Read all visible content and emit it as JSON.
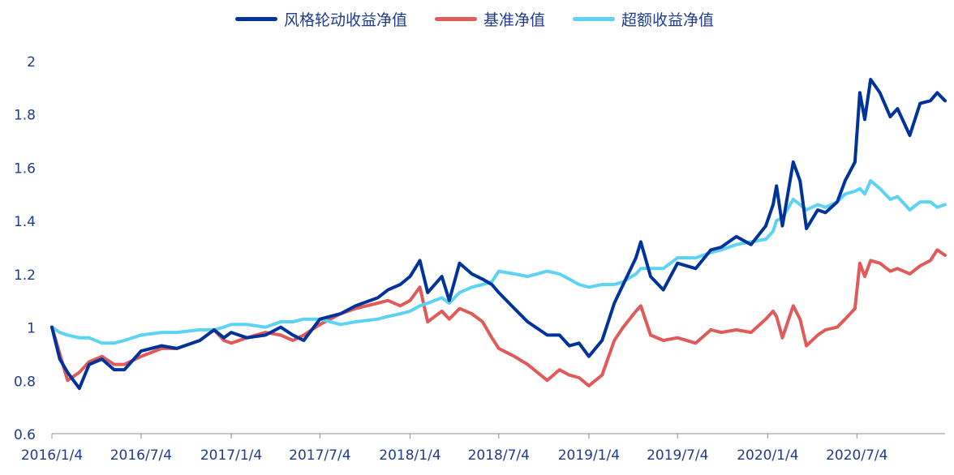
{
  "chart_data": {
    "type": "line",
    "title": "",
    "xlabel": "",
    "ylabel": "",
    "ylim": [
      0.6,
      2.0
    ],
    "yticks": [
      "0.6",
      "0.8",
      "1",
      "1.2",
      "1.4",
      "1.6",
      "1.8",
      "2"
    ],
    "xtick_labels": [
      "2016/1/4",
      "2016/7/4",
      "2017/1/4",
      "2017/7/4",
      "2018/1/4",
      "2018/7/4",
      "2019/1/4",
      "2019/7/4",
      "2020/1/4",
      "2020/7/4"
    ],
    "x_end": "2020/12/31",
    "legend_position": "top-center",
    "series": [
      {
        "name": "风格轮动收益净值",
        "color": "#003399",
        "points": [
          [
            "2016/1/4",
            1.0
          ],
          [
            "2016/1/20",
            0.88
          ],
          [
            "2016/2/5",
            0.83
          ],
          [
            "2016/2/29",
            0.77
          ],
          [
            "2016/3/20",
            0.86
          ],
          [
            "2016/4/15",
            0.88
          ],
          [
            "2016/5/10",
            0.84
          ],
          [
            "2016/5/31",
            0.84
          ],
          [
            "2016/7/4",
            0.91
          ],
          [
            "2016/8/15",
            0.93
          ],
          [
            "2016/9/15",
            0.92
          ],
          [
            "2016/11/1",
            0.95
          ],
          [
            "2016/11/30",
            0.99
          ],
          [
            "2016/12/20",
            0.96
          ],
          [
            "2017/1/4",
            0.98
          ],
          [
            "2017/2/5",
            0.96
          ],
          [
            "2017/3/15",
            0.97
          ],
          [
            "2017/4/15",
            1.0
          ],
          [
            "2017/5/10",
            0.97
          ],
          [
            "2017/6/1",
            0.95
          ],
          [
            "2017/7/4",
            1.03
          ],
          [
            "2017/8/15",
            1.05
          ],
          [
            "2017/9/15",
            1.08
          ],
          [
            "2017/10/30",
            1.11
          ],
          [
            "2017/11/20",
            1.14
          ],
          [
            "2017/12/15",
            1.16
          ],
          [
            "2018/1/4",
            1.19
          ],
          [
            "2018/1/24",
            1.25
          ],
          [
            "2018/2/9",
            1.13
          ],
          [
            "2018/3/10",
            1.19
          ],
          [
            "2018/3/25",
            1.1
          ],
          [
            "2018/4/15",
            1.24
          ],
          [
            "2018/5/10",
            1.2
          ],
          [
            "2018/6/1",
            1.18
          ],
          [
            "2018/6/20",
            1.16
          ],
          [
            "2018/7/4",
            1.13
          ],
          [
            "2018/8/5",
            1.07
          ],
          [
            "2018/9/1",
            1.02
          ],
          [
            "2018/10/11",
            0.97
          ],
          [
            "2018/11/5",
            0.97
          ],
          [
            "2018/11/25",
            0.93
          ],
          [
            "2018/12/15",
            0.94
          ],
          [
            "2019/1/4",
            0.89
          ],
          [
            "2019/1/31",
            0.95
          ],
          [
            "2019/2/25",
            1.09
          ],
          [
            "2019/3/15",
            1.16
          ],
          [
            "2019/4/10",
            1.26
          ],
          [
            "2019/4/20",
            1.32
          ],
          [
            "2019/5/10",
            1.19
          ],
          [
            "2019/6/5",
            1.14
          ],
          [
            "2019/7/4",
            1.24
          ],
          [
            "2019/8/10",
            1.22
          ],
          [
            "2019/9/10",
            1.29
          ],
          [
            "2019/10/1",
            1.3
          ],
          [
            "2019/11/1",
            1.34
          ],
          [
            "2019/12/1",
            1.31
          ],
          [
            "2019/12/31",
            1.38
          ],
          [
            "2020/1/15",
            1.46
          ],
          [
            "2020/1/22",
            1.53
          ],
          [
            "2020/2/3",
            1.38
          ],
          [
            "2020/2/25",
            1.62
          ],
          [
            "2020/3/10",
            1.55
          ],
          [
            "2020/3/23",
            1.37
          ],
          [
            "2020/4/15",
            1.44
          ],
          [
            "2020/5/1",
            1.43
          ],
          [
            "2020/5/25",
            1.47
          ],
          [
            "2020/6/10",
            1.55
          ],
          [
            "2020/6/30",
            1.62
          ],
          [
            "2020/7/10",
            1.88
          ],
          [
            "2020/7/20",
            1.78
          ],
          [
            "2020/8/1",
            1.93
          ],
          [
            "2020/8/20",
            1.88
          ],
          [
            "2020/9/10",
            1.79
          ],
          [
            "2020/9/25",
            1.82
          ],
          [
            "2020/10/20",
            1.72
          ],
          [
            "2020/11/10",
            1.84
          ],
          [
            "2020/12/1",
            1.85
          ],
          [
            "2020/12/15",
            1.88
          ],
          [
            "2020/12/31",
            1.85
          ]
        ]
      },
      {
        "name": "基准净值",
        "color": "#e05a5a",
        "points": [
          [
            "2016/1/4",
            1.0
          ],
          [
            "2016/1/20",
            0.9
          ],
          [
            "2016/2/5",
            0.8
          ],
          [
            "2016/2/29",
            0.83
          ],
          [
            "2016/3/20",
            0.87
          ],
          [
            "2016/4/15",
            0.89
          ],
          [
            "2016/5/10",
            0.86
          ],
          [
            "2016/5/31",
            0.86
          ],
          [
            "2016/7/4",
            0.89
          ],
          [
            "2016/8/15",
            0.92
          ],
          [
            "2016/9/15",
            0.92
          ],
          [
            "2016/11/1",
            0.95
          ],
          [
            "2016/11/30",
            0.99
          ],
          [
            "2016/12/20",
            0.95
          ],
          [
            "2017/1/4",
            0.94
          ],
          [
            "2017/2/5",
            0.96
          ],
          [
            "2017/3/15",
            0.98
          ],
          [
            "2017/4/15",
            0.97
          ],
          [
            "2017/5/10",
            0.95
          ],
          [
            "2017/6/1",
            0.97
          ],
          [
            "2017/7/4",
            1.01
          ],
          [
            "2017/8/15",
            1.05
          ],
          [
            "2017/9/15",
            1.07
          ],
          [
            "2017/10/30",
            1.09
          ],
          [
            "2017/11/20",
            1.1
          ],
          [
            "2017/12/15",
            1.08
          ],
          [
            "2018/1/4",
            1.1
          ],
          [
            "2018/1/24",
            1.15
          ],
          [
            "2018/2/9",
            1.02
          ],
          [
            "2018/3/10",
            1.06
          ],
          [
            "2018/3/25",
            1.03
          ],
          [
            "2018/4/15",
            1.07
          ],
          [
            "2018/5/10",
            1.05
          ],
          [
            "2018/6/1",
            1.02
          ],
          [
            "2018/6/20",
            0.96
          ],
          [
            "2018/7/4",
            0.92
          ],
          [
            "2018/8/5",
            0.89
          ],
          [
            "2018/9/1",
            0.86
          ],
          [
            "2018/10/11",
            0.8
          ],
          [
            "2018/11/5",
            0.84
          ],
          [
            "2018/11/25",
            0.82
          ],
          [
            "2018/12/15",
            0.81
          ],
          [
            "2019/1/4",
            0.78
          ],
          [
            "2019/1/31",
            0.82
          ],
          [
            "2019/2/25",
            0.95
          ],
          [
            "2019/3/15",
            1.0
          ],
          [
            "2019/4/10",
            1.06
          ],
          [
            "2019/4/20",
            1.08
          ],
          [
            "2019/5/10",
            0.97
          ],
          [
            "2019/6/5",
            0.95
          ],
          [
            "2019/7/4",
            0.96
          ],
          [
            "2019/8/10",
            0.94
          ],
          [
            "2019/9/10",
            0.99
          ],
          [
            "2019/10/1",
            0.98
          ],
          [
            "2019/11/1",
            0.99
          ],
          [
            "2019/12/1",
            0.98
          ],
          [
            "2019/12/31",
            1.03
          ],
          [
            "2020/1/15",
            1.06
          ],
          [
            "2020/1/22",
            1.04
          ],
          [
            "2020/2/3",
            0.96
          ],
          [
            "2020/2/25",
            1.08
          ],
          [
            "2020/3/10",
            1.03
          ],
          [
            "2020/3/23",
            0.93
          ],
          [
            "2020/4/15",
            0.97
          ],
          [
            "2020/5/1",
            0.99
          ],
          [
            "2020/5/25",
            1.0
          ],
          [
            "2020/6/10",
            1.03
          ],
          [
            "2020/6/30",
            1.07
          ],
          [
            "2020/7/10",
            1.24
          ],
          [
            "2020/7/20",
            1.19
          ],
          [
            "2020/8/1",
            1.25
          ],
          [
            "2020/8/20",
            1.24
          ],
          [
            "2020/9/10",
            1.21
          ],
          [
            "2020/9/25",
            1.22
          ],
          [
            "2020/10/20",
            1.2
          ],
          [
            "2020/11/10",
            1.23
          ],
          [
            "2020/12/1",
            1.25
          ],
          [
            "2020/12/15",
            1.29
          ],
          [
            "2020/12/31",
            1.27
          ]
        ]
      },
      {
        "name": "超额收益净值",
        "color": "#5dd3f3",
        "points": [
          [
            "2016/1/4",
            1.0
          ],
          [
            "2016/1/20",
            0.98
          ],
          [
            "2016/2/5",
            0.97
          ],
          [
            "2016/2/29",
            0.96
          ],
          [
            "2016/3/20",
            0.96
          ],
          [
            "2016/4/15",
            0.94
          ],
          [
            "2016/5/10",
            0.94
          ],
          [
            "2016/5/31",
            0.95
          ],
          [
            "2016/7/4",
            0.97
          ],
          [
            "2016/8/15",
            0.98
          ],
          [
            "2016/9/15",
            0.98
          ],
          [
            "2016/11/1",
            0.99
          ],
          [
            "2016/11/30",
            0.99
          ],
          [
            "2016/12/20",
            1.0
          ],
          [
            "2017/1/4",
            1.01
          ],
          [
            "2017/2/5",
            1.01
          ],
          [
            "2017/3/15",
            1.0
          ],
          [
            "2017/4/15",
            1.02
          ],
          [
            "2017/5/10",
            1.02
          ],
          [
            "2017/6/1",
            1.03
          ],
          [
            "2017/7/4",
            1.03
          ],
          [
            "2017/8/15",
            1.01
          ],
          [
            "2017/9/15",
            1.02
          ],
          [
            "2017/10/30",
            1.03
          ],
          [
            "2017/11/20",
            1.04
          ],
          [
            "2017/12/15",
            1.05
          ],
          [
            "2018/1/4",
            1.06
          ],
          [
            "2018/1/24",
            1.08
          ],
          [
            "2018/2/9",
            1.09
          ],
          [
            "2018/3/10",
            1.11
          ],
          [
            "2018/3/25",
            1.09
          ],
          [
            "2018/4/15",
            1.13
          ],
          [
            "2018/5/10",
            1.15
          ],
          [
            "2018/6/1",
            1.16
          ],
          [
            "2018/6/20",
            1.17
          ],
          [
            "2018/7/4",
            1.21
          ],
          [
            "2018/8/5",
            1.2
          ],
          [
            "2018/9/1",
            1.19
          ],
          [
            "2018/10/11",
            1.21
          ],
          [
            "2018/11/5",
            1.2
          ],
          [
            "2018/11/25",
            1.18
          ],
          [
            "2018/12/15",
            1.16
          ],
          [
            "2019/1/4",
            1.15
          ],
          [
            "2019/1/31",
            1.16
          ],
          [
            "2019/2/25",
            1.16
          ],
          [
            "2019/3/15",
            1.17
          ],
          [
            "2019/4/10",
            1.2
          ],
          [
            "2019/4/20",
            1.22
          ],
          [
            "2019/5/10",
            1.22
          ],
          [
            "2019/6/5",
            1.22
          ],
          [
            "2019/7/4",
            1.26
          ],
          [
            "2019/8/10",
            1.26
          ],
          [
            "2019/9/10",
            1.28
          ],
          [
            "2019/10/1",
            1.29
          ],
          [
            "2019/11/1",
            1.31
          ],
          [
            "2019/12/1",
            1.32
          ],
          [
            "2019/12/31",
            1.33
          ],
          [
            "2020/1/15",
            1.36
          ],
          [
            "2020/1/22",
            1.4
          ],
          [
            "2020/2/3",
            1.41
          ],
          [
            "2020/2/25",
            1.48
          ],
          [
            "2020/3/10",
            1.46
          ],
          [
            "2020/3/23",
            1.44
          ],
          [
            "2020/4/15",
            1.46
          ],
          [
            "2020/5/1",
            1.45
          ],
          [
            "2020/5/25",
            1.47
          ],
          [
            "2020/6/10",
            1.5
          ],
          [
            "2020/6/30",
            1.51
          ],
          [
            "2020/7/10",
            1.52
          ],
          [
            "2020/7/20",
            1.5
          ],
          [
            "2020/8/1",
            1.55
          ],
          [
            "2020/8/20",
            1.52
          ],
          [
            "2020/9/10",
            1.48
          ],
          [
            "2020/9/25",
            1.49
          ],
          [
            "2020/10/20",
            1.44
          ],
          [
            "2020/11/10",
            1.47
          ],
          [
            "2020/12/1",
            1.47
          ],
          [
            "2020/12/15",
            1.45
          ],
          [
            "2020/12/31",
            1.46
          ]
        ]
      }
    ]
  }
}
